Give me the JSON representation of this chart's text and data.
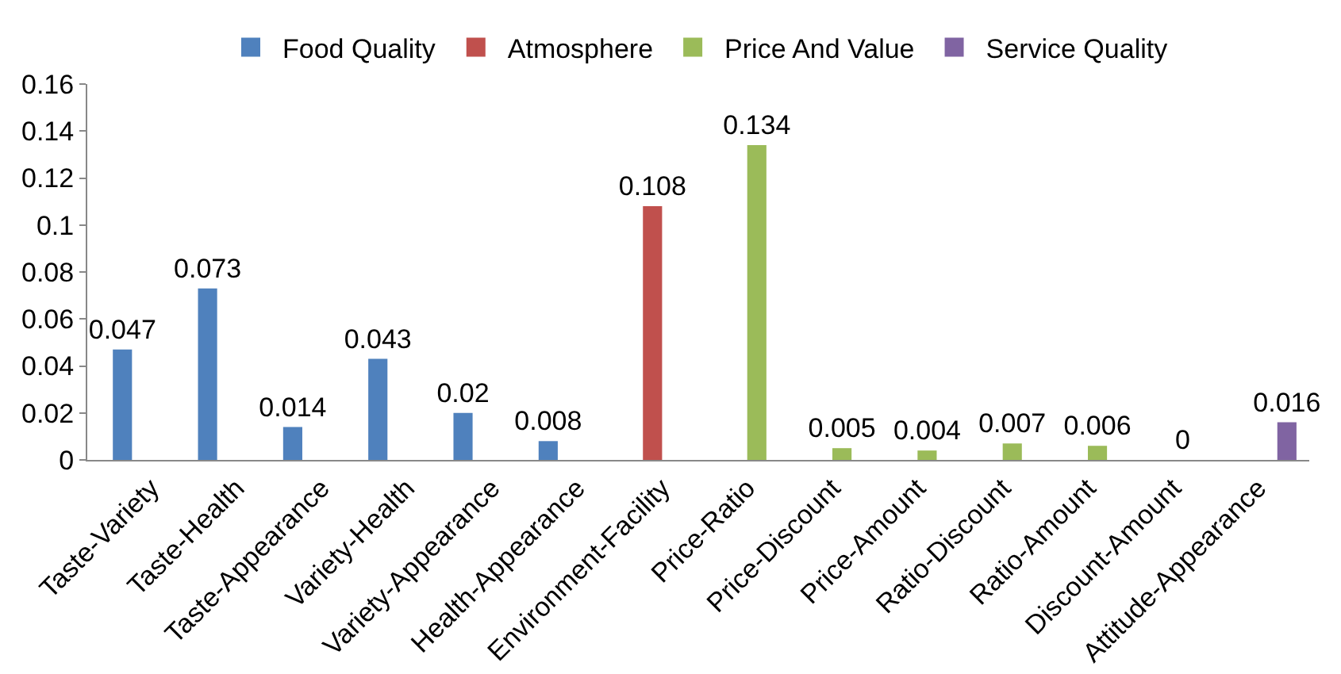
{
  "chart_data": {
    "type": "bar",
    "categories": [
      "Taste-Variety",
      "Taste-Health",
      "Taste-Appearance",
      "Variety-Health",
      "Variety-Appearance",
      "Health-Appearance",
      "Environment-Facility",
      "Price-Ratio",
      "Price-Discount",
      "Price-Amount",
      "Ratio-Discount",
      "Ratio-Amount",
      "Discount-Amount",
      "Attitude-Appearance"
    ],
    "series": [
      {
        "name": "Food Quality",
        "color": "#4f81bd",
        "values": [
          0.047,
          0.073,
          0.014,
          0.043,
          0.02,
          0.008,
          null,
          null,
          null,
          null,
          null,
          null,
          null,
          null
        ]
      },
      {
        "name": "Atmosphere",
        "color": "#c0504d",
        "values": [
          null,
          null,
          null,
          null,
          null,
          null,
          0.108,
          null,
          null,
          null,
          null,
          null,
          null,
          null
        ]
      },
      {
        "name": "Price And Value",
        "color": "#9bbb59",
        "values": [
          null,
          null,
          null,
          null,
          null,
          null,
          null,
          0.134,
          0.005,
          0.004,
          0.007,
          0.006,
          0,
          null
        ]
      },
      {
        "name": "Service Quality",
        "color": "#8064a2",
        "values": [
          null,
          null,
          null,
          null,
          null,
          null,
          null,
          null,
          null,
          null,
          null,
          null,
          null,
          0.016
        ]
      }
    ],
    "ylim": [
      0,
      0.16
    ],
    "yticks": [
      0,
      0.02,
      0.04,
      0.06,
      0.08,
      0.1,
      0.12,
      0.14,
      0.16
    ],
    "grid": false,
    "legend": "top",
    "data_labels": true
  }
}
